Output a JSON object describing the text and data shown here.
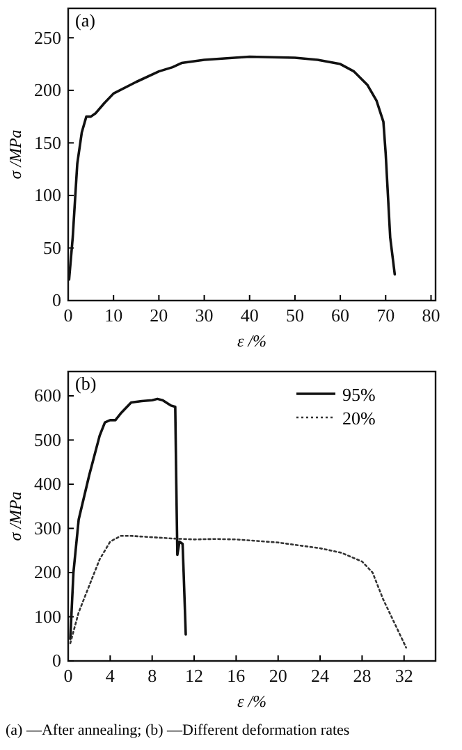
{
  "chart_data": [
    {
      "type": "line",
      "title": "(a)",
      "xlabel": "ε /%",
      "ylabel": "σ /MPa",
      "xlim": [
        0,
        81
      ],
      "ylim": [
        0,
        278
      ],
      "xticks": [
        0,
        10,
        20,
        30,
        40,
        50,
        60,
        70,
        80
      ],
      "yticks": [
        0,
        50,
        100,
        150,
        200,
        250
      ],
      "color": "#111111",
      "line_style": "solid",
      "x": [
        0.2,
        1,
        2,
        3,
        4,
        5,
        6,
        8,
        10,
        15,
        20,
        23,
        25,
        30,
        40,
        50,
        55,
        60,
        63,
        66,
        68,
        69.5,
        70,
        70.5,
        71,
        72
      ],
      "values": [
        20,
        60,
        130,
        160,
        175,
        175,
        178,
        188,
        197,
        208,
        218,
        222,
        226,
        229,
        232,
        231,
        229,
        225,
        218,
        205,
        190,
        170,
        140,
        100,
        60,
        25
      ]
    },
    {
      "type": "line",
      "title": "(b)",
      "xlabel": "ε /%",
      "ylabel": "σ /MPa",
      "xlim": [
        0,
        35
      ],
      "ylim": [
        0,
        655
      ],
      "xticks": [
        0,
        4,
        8,
        12,
        16,
        20,
        24,
        28,
        32
      ],
      "yticks": [
        0,
        100,
        200,
        300,
        400,
        500,
        600
      ],
      "legend": "top right",
      "annotations": [
        "(a) —After annealing; (b) —Different deformation rates"
      ],
      "series": [
        {
          "name": "95%",
          "color": "#111111",
          "line_style": "solid",
          "x": [
            0.2,
            0.5,
            1,
            2,
            3,
            3.5,
            4,
            4.5,
            5,
            6,
            7,
            8,
            8.5,
            9,
            9.8,
            10.2,
            10.3,
            10.4,
            10.6,
            10.9,
            11,
            11.2
          ],
          "values": [
            50,
            200,
            320,
            420,
            510,
            540,
            545,
            545,
            560,
            585,
            588,
            590,
            593,
            590,
            578,
            575,
            400,
            240,
            270,
            265,
            200,
            60
          ]
        },
        {
          "name": "20%",
          "color": "#333333",
          "line_style": "dotted",
          "x": [
            0.2,
            1,
            2,
            3,
            4,
            5,
            6,
            8,
            10,
            12,
            14,
            16,
            20,
            24,
            26,
            28,
            29,
            30,
            31,
            32.2
          ],
          "values": [
            40,
            110,
            170,
            230,
            270,
            283,
            283,
            280,
            277,
            275,
            276,
            275,
            268,
            255,
            245,
            225,
            200,
            140,
            90,
            30
          ]
        }
      ]
    }
  ]
}
